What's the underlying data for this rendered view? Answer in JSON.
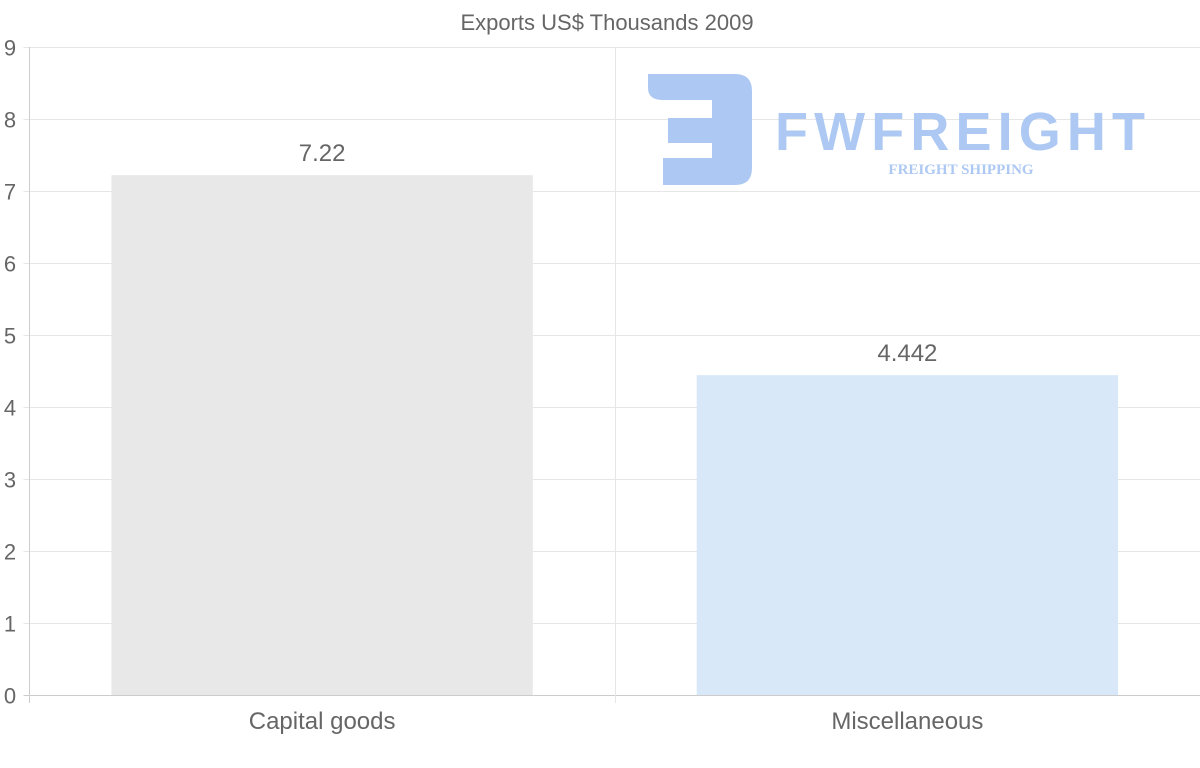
{
  "chart_data": {
    "type": "bar",
    "title": "Exports US$ Thousands 2009",
    "categories": [
      "Capital goods",
      "Miscellaneous"
    ],
    "values": [
      7.22,
      4.442
    ],
    "value_labels": [
      "7.22",
      "4.442"
    ],
    "bar_colors": [
      "#e8e8e8",
      "#d8e8f8"
    ],
    "xlabel": "",
    "ylabel": "",
    "ylim": [
      0,
      9
    ],
    "yticks": [
      0,
      1,
      2,
      3,
      4,
      5,
      6,
      7,
      8,
      9
    ],
    "grid": true,
    "legend": "none"
  },
  "watermark": {
    "brand": "FWFREIGHT",
    "tagline": "FREIGHT SHIPPING",
    "color": "#a9c6f2"
  }
}
